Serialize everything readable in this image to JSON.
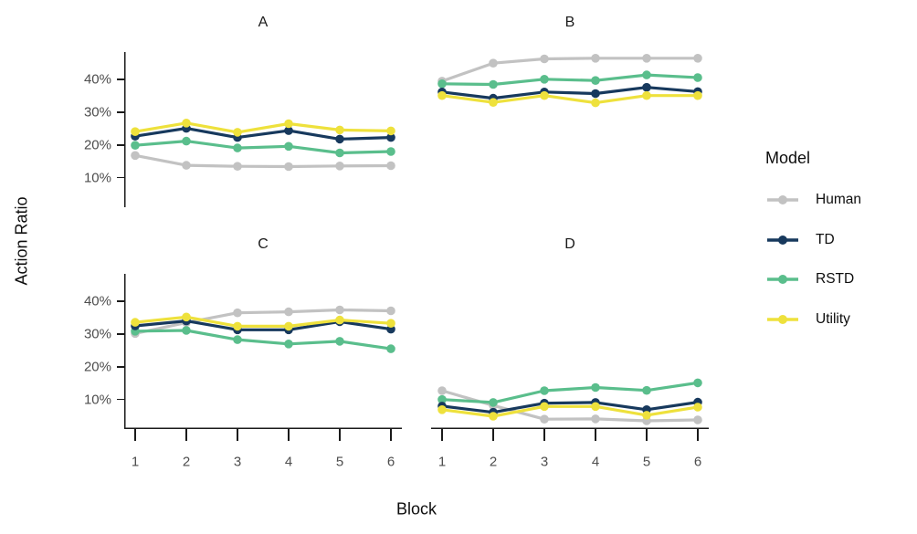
{
  "figure": {
    "y_axis_title": "Action Ratio",
    "x_axis_title": "Block",
    "legend": {
      "title": "Model",
      "entries": [
        {
          "label": "Human",
          "color": "#c2c2c2"
        },
        {
          "label": "TD",
          "color": "#17395d"
        },
        {
          "label": "RSTD",
          "color": "#5abe8c"
        },
        {
          "label": "Utility",
          "color": "#eee13c"
        }
      ]
    }
  },
  "chart_data": {
    "type": "line",
    "title": "",
    "xlabel": "Block",
    "ylabel": "Action Ratio",
    "x": [
      1,
      2,
      3,
      4,
      5,
      6
    ],
    "y_ticks": [
      {
        "value": 40,
        "label": "40%"
      },
      {
        "value": 30,
        "label": "30%"
      },
      {
        "value": 20,
        "label": "20%"
      },
      {
        "value": 10,
        "label": "10%"
      }
    ],
    "ylim": [
      1,
      48.4
    ],
    "y_unit": "percent",
    "grid": false,
    "legend_position": "right",
    "draw_order": [
      "Human",
      "RSTD",
      "TD",
      "Utility"
    ],
    "facets": [
      {
        "label": "A",
        "series": [
          {
            "name": "Human",
            "color": "#c2c2c2",
            "values": [
              16.8,
              13.8,
              13.5,
              13.4,
              13.6,
              13.7
            ]
          },
          {
            "name": "TD",
            "color": "#17395d",
            "values": [
              22.7,
              25.1,
              22.3,
              24.4,
              21.8,
              22.3
            ]
          },
          {
            "name": "RSTD",
            "color": "#5abe8c",
            "values": [
              19.9,
              21.2,
              19.1,
              19.6,
              17.6,
              18.0
            ]
          },
          {
            "name": "Utility",
            "color": "#eee13c",
            "values": [
              24.1,
              26.7,
              23.9,
              26.5,
              24.6,
              24.3
            ]
          }
        ]
      },
      {
        "label": "B",
        "series": [
          {
            "name": "Human",
            "color": "#c2c2c2",
            "values": [
              39.5,
              45.0,
              46.3,
              46.5,
              46.5,
              46.5
            ]
          },
          {
            "name": "TD",
            "color": "#17395d",
            "values": [
              36.2,
              34.3,
              36.2,
              35.7,
              37.6,
              36.3
            ]
          },
          {
            "name": "RSTD",
            "color": "#5abe8c",
            "values": [
              38.7,
              38.5,
              40.1,
              39.7,
              41.4,
              40.6
            ]
          },
          {
            "name": "Utility",
            "color": "#eee13c",
            "values": [
              35.1,
              33.0,
              35.1,
              32.9,
              35.1,
              35.1
            ]
          }
        ]
      },
      {
        "label": "C",
        "series": [
          {
            "name": "Human",
            "color": "#c2c2c2",
            "values": [
              30.2,
              33.5,
              36.5,
              36.8,
              37.4,
              37.1
            ]
          },
          {
            "name": "TD",
            "color": "#17395d",
            "values": [
              32.5,
              34.0,
              31.3,
              31.3,
              33.8,
              31.5
            ]
          },
          {
            "name": "RSTD",
            "color": "#5abe8c",
            "values": [
              30.9,
              31.1,
              28.3,
              27.0,
              27.8,
              25.5
            ]
          },
          {
            "name": "Utility",
            "color": "#eee13c",
            "values": [
              33.6,
              35.2,
              32.4,
              32.4,
              34.3,
              33.3
            ]
          }
        ]
      },
      {
        "label": "D",
        "series": [
          {
            "name": "Human",
            "color": "#c2c2c2",
            "values": [
              12.7,
              8.2,
              4.0,
              4.1,
              3.5,
              3.8
            ]
          },
          {
            "name": "TD",
            "color": "#17395d",
            "values": [
              8.0,
              6.1,
              8.9,
              9.1,
              6.9,
              9.2
            ]
          },
          {
            "name": "RSTD",
            "color": "#5abe8c",
            "values": [
              10.0,
              9.1,
              12.7,
              13.7,
              12.8,
              15.1
            ]
          },
          {
            "name": "Utility",
            "color": "#eee13c",
            "values": [
              6.9,
              4.9,
              7.9,
              7.9,
              5.2,
              7.7
            ]
          }
        ]
      }
    ]
  }
}
